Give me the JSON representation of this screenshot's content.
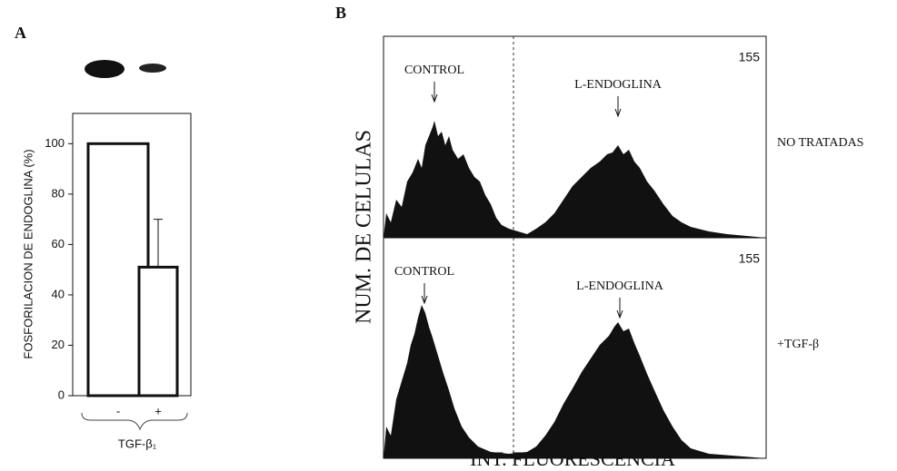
{
  "panel_labels": [
    "A",
    "B"
  ],
  "chart_data": {
    "type": "bar",
    "ylabel": "FOSFORILACION DE ENDOGLINA (%)",
    "xlabel": "TGF-β₁",
    "categories": [
      "-",
      "+"
    ],
    "values": [
      100,
      51
    ],
    "errors": [
      null,
      19
    ],
    "color": "#ffffff",
    "ylim": [
      0,
      112
    ],
    "yticks": [
      0,
      20,
      40,
      60,
      80,
      100
    ]
  },
  "panel_b": {
    "ylabel": "NUM. DE CELULAS",
    "xlabel": "INT. FLUORESCENCIA",
    "rows": [
      {
        "count": "155",
        "control": "CONTROL",
        "target": "L-ENDOGLINA",
        "condition": "NO TRATADAS"
      },
      {
        "count": "155",
        "control": "CONTROL",
        "target": "L-ENDOGLINA",
        "condition": "+TGF-β"
      }
    ]
  }
}
